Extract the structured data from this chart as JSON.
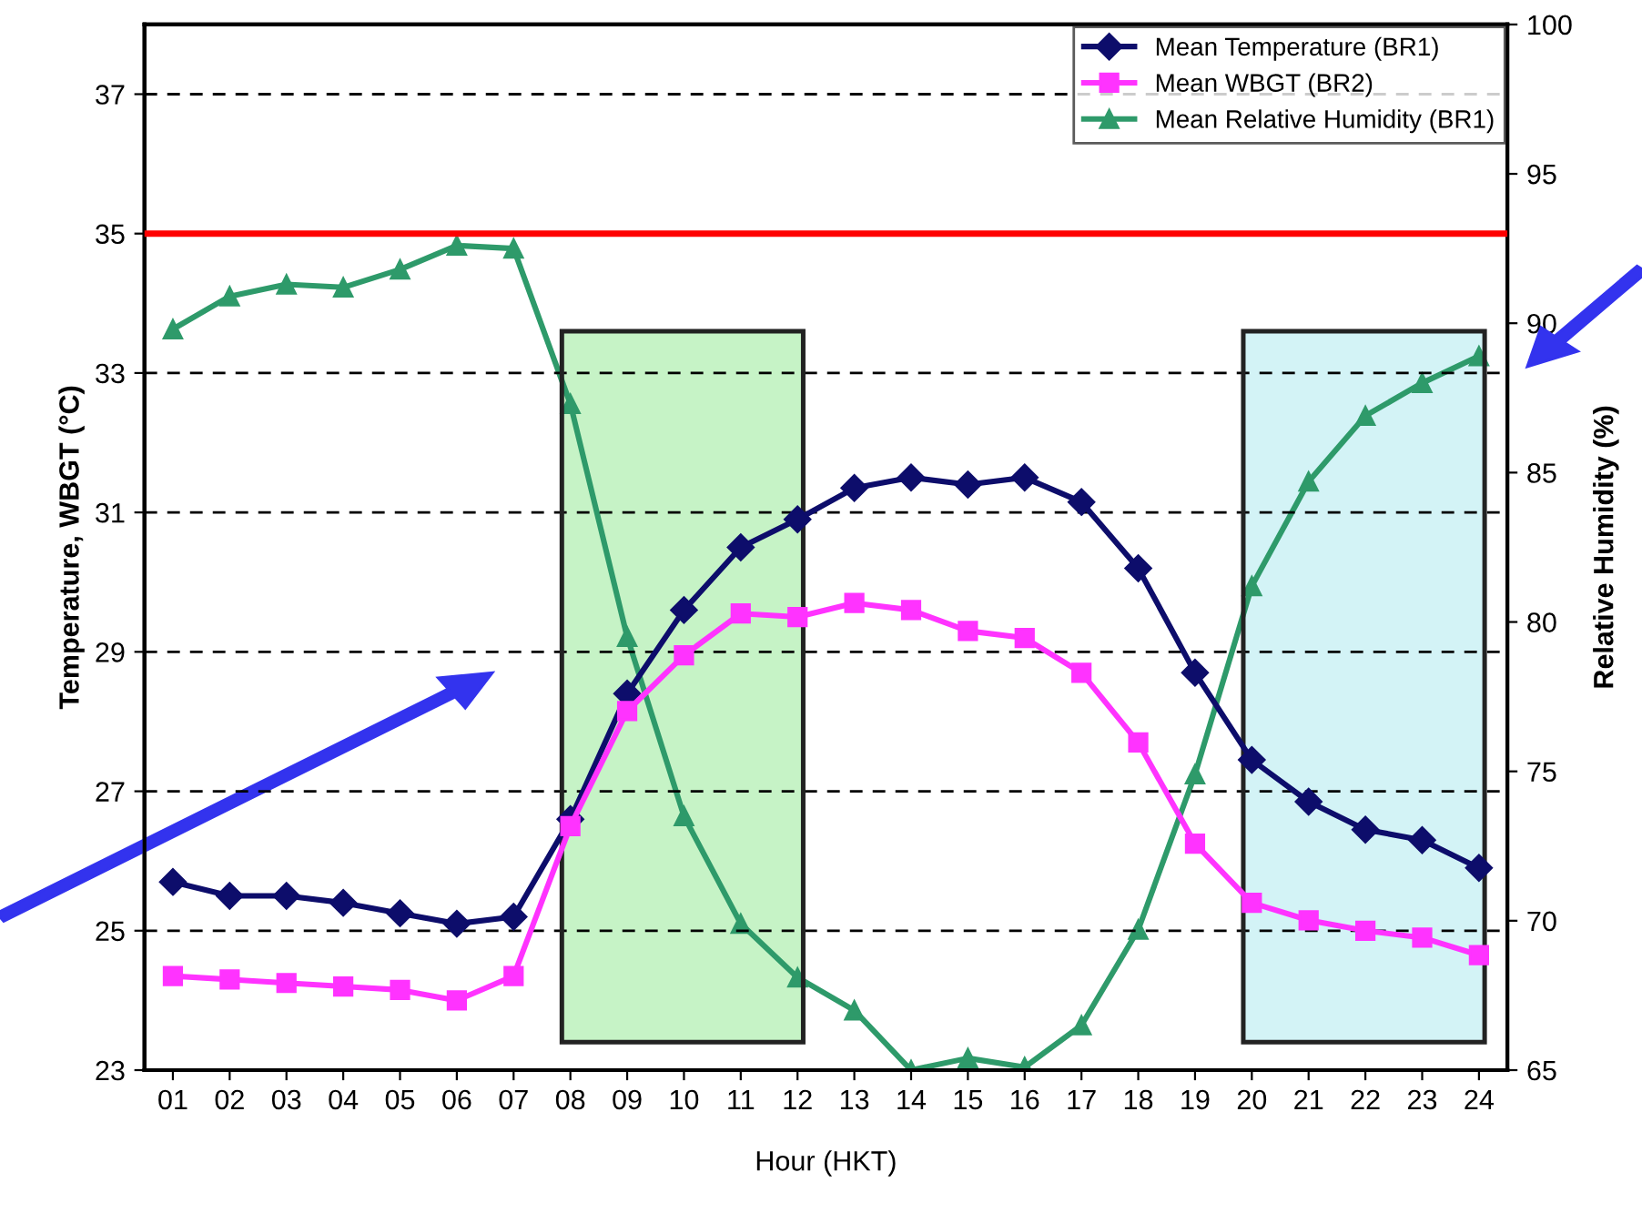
{
  "chart_data": {
    "type": "line",
    "xlabel": "Hour (HKT)",
    "ylabel": "Temperature, WBGT (°C)",
    "y2label": "Relative Humidity (%)",
    "categories": [
      "01",
      "02",
      "03",
      "04",
      "05",
      "06",
      "07",
      "08",
      "09",
      "10",
      "11",
      "12",
      "13",
      "14",
      "15",
      "16",
      "17",
      "18",
      "19",
      "20",
      "21",
      "22",
      "23",
      "24"
    ],
    "series": [
      {
        "name": "Mean Temperature (BR1)",
        "color": "#0d0d6b",
        "marker": "diamond",
        "values": [
          25.7,
          25.5,
          25.5,
          25.4,
          25.25,
          25.1,
          25.2,
          26.6,
          28.4,
          29.6,
          30.5,
          30.9,
          31.35,
          31.5,
          31.4,
          31.5,
          31.15,
          30.2,
          28.7,
          27.45,
          26.85,
          26.45,
          26.3,
          25.9
        ]
      },
      {
        "name": "Mean WBGT (BR2)",
        "color": "#ff33ff",
        "marker": "square",
        "values": [
          24.35,
          24.3,
          24.25,
          24.2,
          24.15,
          24.0,
          24.35,
          26.5,
          28.15,
          28.95,
          29.55,
          29.5,
          29.7,
          29.6,
          29.3,
          29.2,
          28.7,
          27.7,
          26.25,
          25.4,
          25.15,
          25.0,
          24.9,
          24.65
        ]
      },
      {
        "name": "Mean Relative Humidity (BR1)",
        "color": "#2e9a6a",
        "marker": "triangle",
        "axis": "y2",
        "values": [
          89.8,
          90.9,
          91.3,
          91.2,
          91.8,
          92.6,
          92.5,
          87.3,
          79.5,
          73.5,
          69.9,
          68.1,
          67.0,
          65.0,
          65.4,
          65.1,
          66.5,
          69.7,
          74.9,
          81.2,
          84.7,
          86.9,
          88.0,
          88.9
        ]
      }
    ],
    "ylim": [
      23,
      38
    ],
    "yticks": [
      23,
      25,
      27,
      29,
      31,
      33,
      35,
      37
    ],
    "y2lim": [
      65,
      100
    ],
    "y2ticks": [
      65,
      70,
      75,
      80,
      85,
      90,
      95,
      100
    ],
    "ref_lines": [
      {
        "axis": "y",
        "value": 35,
        "color": "#ff0000"
      }
    ],
    "bands": [
      {
        "axis": "x",
        "from": "08",
        "to": "12",
        "color": "#b8f0b8"
      },
      {
        "axis": "x",
        "from": "20",
        "to": "24",
        "color": "#c8f0f4"
      }
    ],
    "grid": "y",
    "legend": "top right",
    "line_style": "solid"
  }
}
